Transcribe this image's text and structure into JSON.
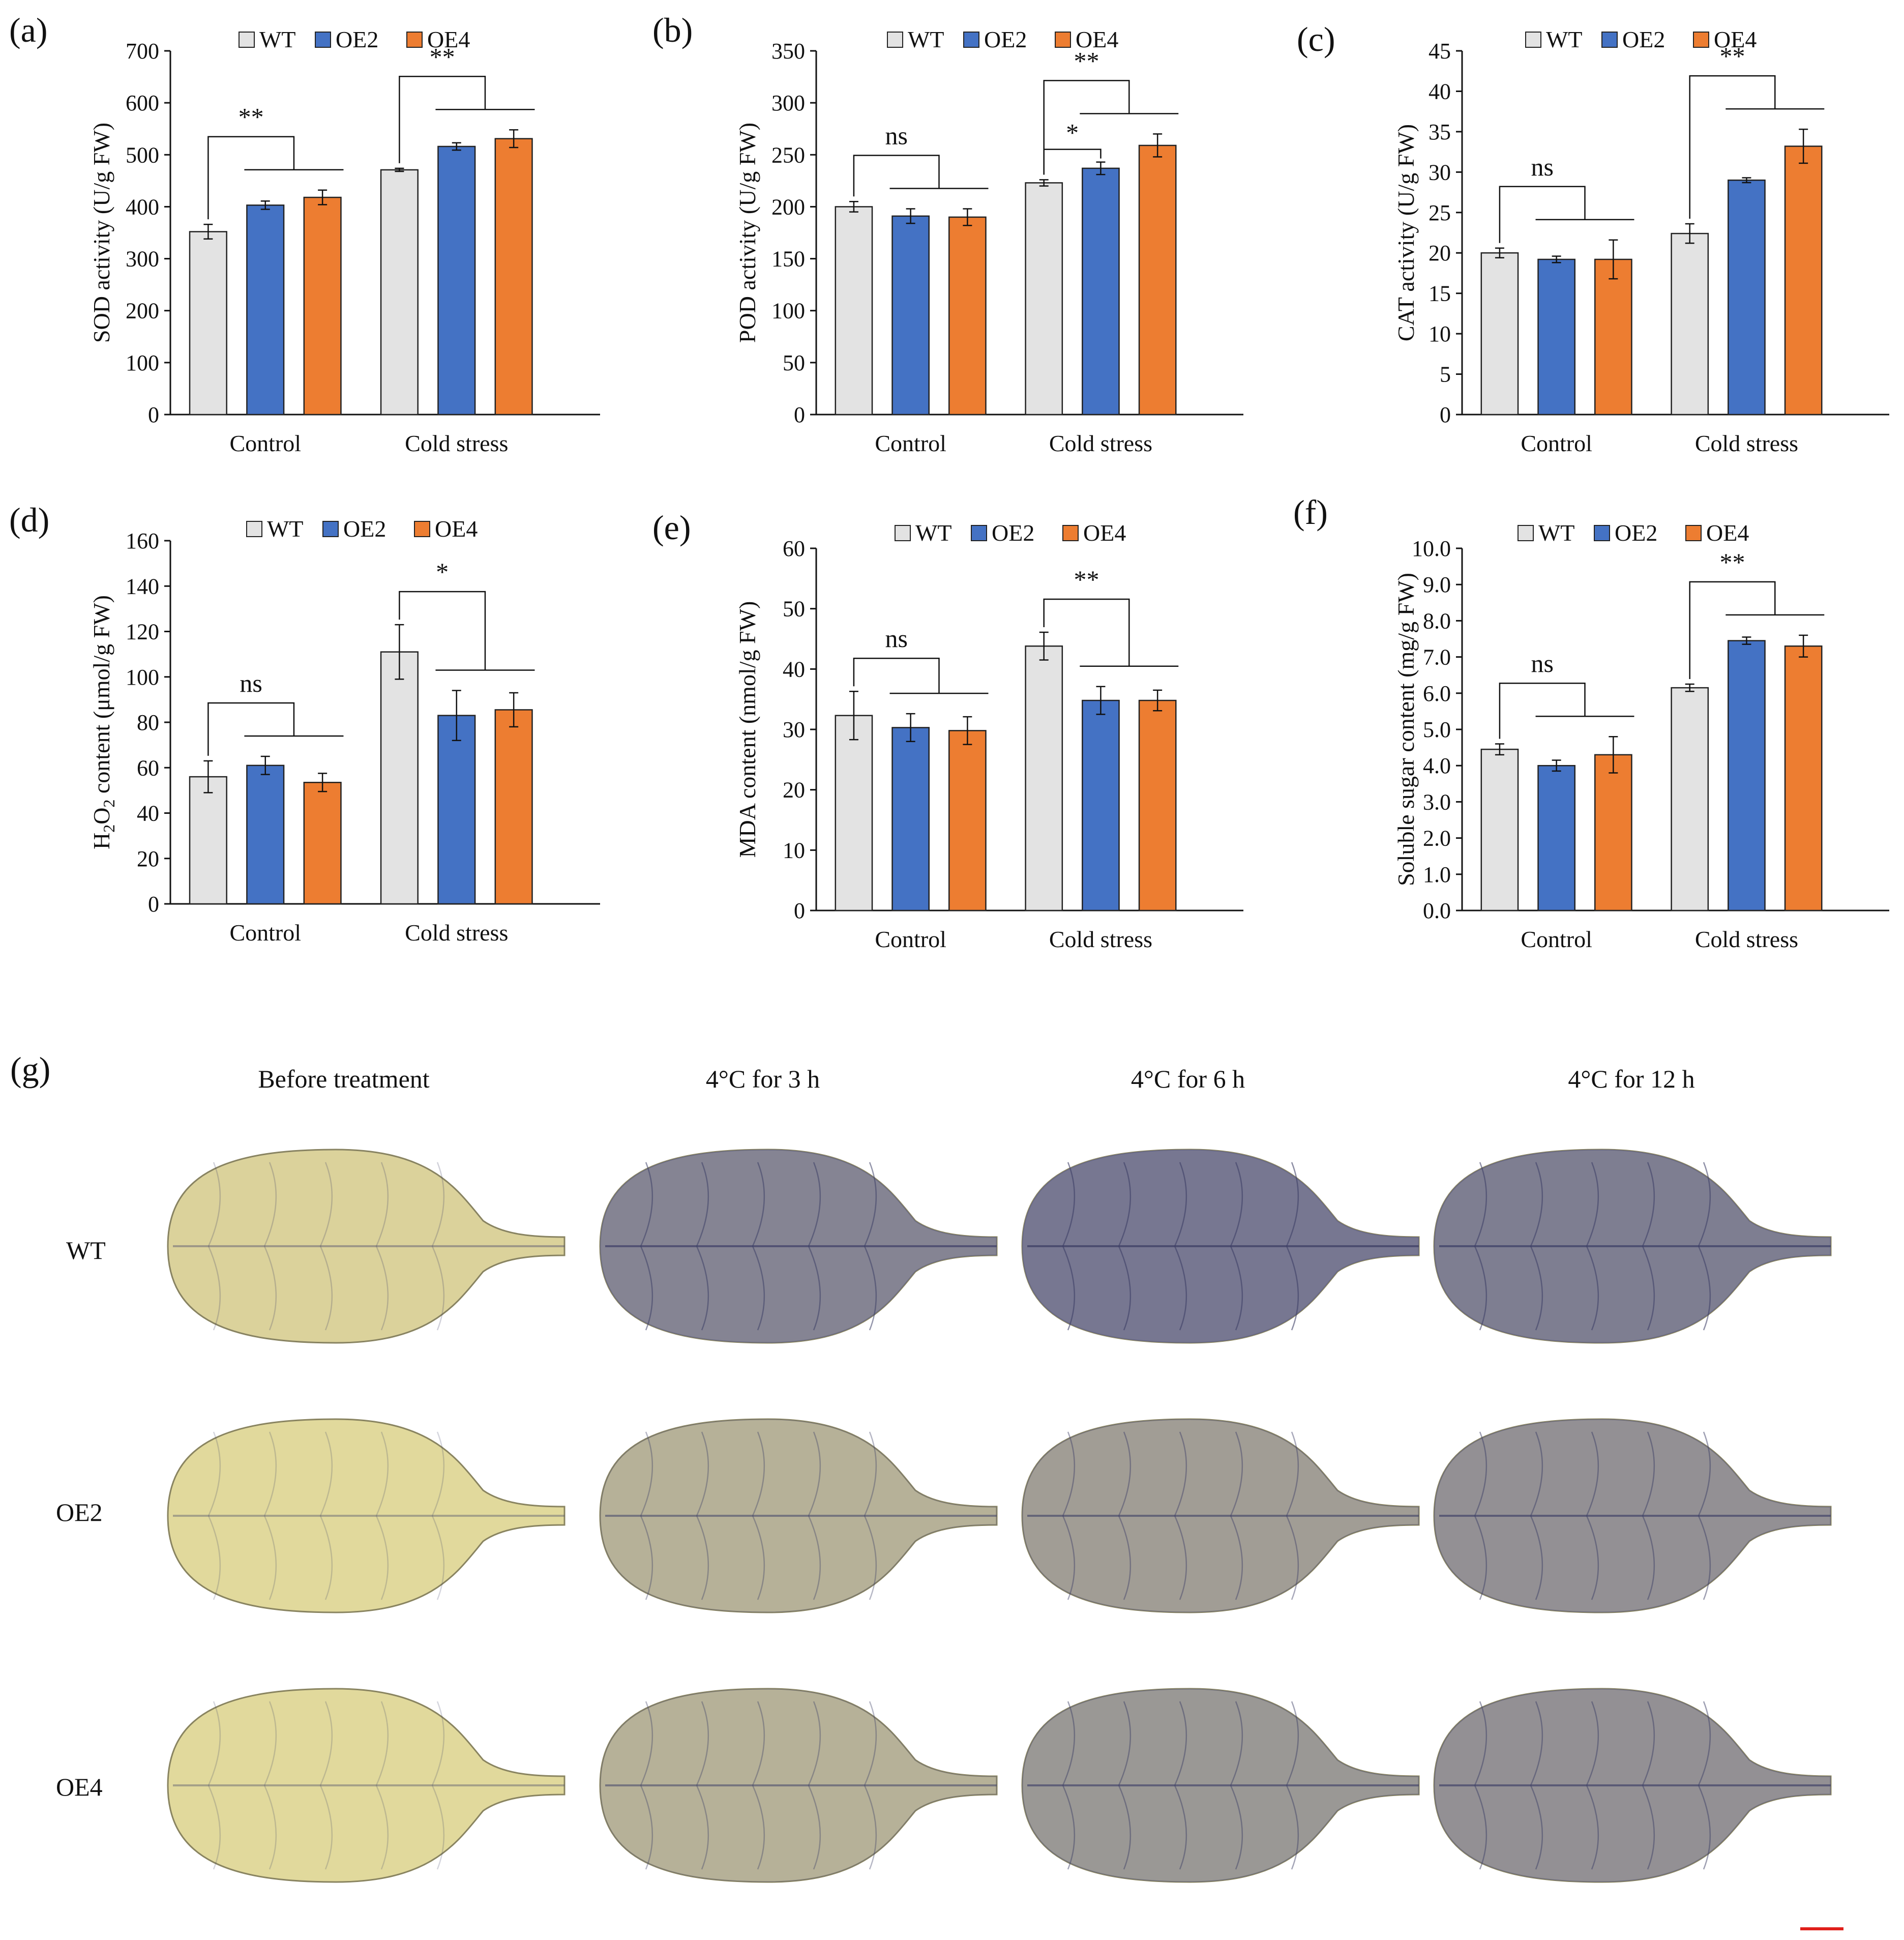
{
  "legend": {
    "wt": "WT",
    "oe2": "OE2",
    "oe4": "OE4"
  },
  "colors": {
    "wt": "#e3e3e3",
    "oe2": "#4472c4",
    "oe4": "#ed7d31",
    "scale_bar": "#e0201b",
    "leaf_base": "#e6dd9d",
    "stain": "#5b5e8e"
  },
  "chart_data": [
    {
      "panel": "(a)",
      "type": "bar",
      "ylabel": "SOD activity (U/g FW)",
      "categories": [
        "Control",
        "Cold stress"
      ],
      "ylim": [
        0,
        700
      ],
      "ticks": [
        "0",
        "100",
        "200",
        "300",
        "400",
        "500",
        "600",
        "700"
      ],
      "series": [
        {
          "name": "WT",
          "values": [
            352,
            471
          ],
          "errors": [
            14,
            3
          ]
        },
        {
          "name": "OE2",
          "values": [
            403,
            516
          ],
          "errors": [
            8,
            7
          ]
        },
        {
          "name": "OE4",
          "values": [
            418,
            531
          ],
          "errors": [
            14,
            17
          ]
        }
      ],
      "significance": [
        "**",
        "**"
      ]
    },
    {
      "panel": "(b)",
      "type": "bar",
      "ylabel": "POD activity (U/g FW)",
      "categories": [
        "Control",
        "Cold stress"
      ],
      "ylim": [
        0,
        350
      ],
      "ticks": [
        "0",
        "50",
        "100",
        "150",
        "200",
        "250",
        "300",
        "350"
      ],
      "series": [
        {
          "name": "WT",
          "values": [
            200,
            223
          ],
          "errors": [
            5,
            3
          ]
        },
        {
          "name": "OE2",
          "values": [
            191,
            237
          ],
          "errors": [
            7,
            6
          ]
        },
        {
          "name": "OE4",
          "values": [
            190,
            259
          ],
          "errors": [
            8,
            11
          ]
        }
      ],
      "significance": [
        "ns",
        "**"
      ],
      "extra_significance": "*"
    },
    {
      "panel": "(c)",
      "type": "bar",
      "ylabel": "CAT activity (U/g FW)",
      "categories": [
        "Control",
        "Cold stress"
      ],
      "ylim": [
        0,
        45
      ],
      "ticks": [
        "0",
        "5",
        "10",
        "15",
        "20",
        "25",
        "30",
        "35",
        "40",
        "45"
      ],
      "series": [
        {
          "name": "WT",
          "values": [
            20.0,
            22.4
          ],
          "errors": [
            0.6,
            1.2
          ]
        },
        {
          "name": "OE2",
          "values": [
            19.2,
            29.0
          ],
          "errors": [
            0.4,
            0.3
          ]
        },
        {
          "name": "OE4",
          "values": [
            19.2,
            33.2
          ],
          "errors": [
            2.4,
            2.1
          ]
        }
      ],
      "significance": [
        "ns",
        "**"
      ]
    },
    {
      "panel": "(d)",
      "type": "bar",
      "ylabel_main": "H",
      "ylabel_sub1": "2",
      "ylabel_mid": "O",
      "ylabel_sub2": "2",
      "ylabel_rest": " content (μmol/g FW)",
      "categories": [
        "Control",
        "Cold stress"
      ],
      "ylim": [
        0,
        160
      ],
      "ticks": [
        "0",
        "20",
        "40",
        "60",
        "80",
        "100",
        "120",
        "140",
        "160"
      ],
      "series": [
        {
          "name": "WT",
          "values": [
            56,
            111
          ],
          "errors": [
            7,
            12
          ]
        },
        {
          "name": "OE2",
          "values": [
            61,
            83
          ],
          "errors": [
            4,
            11
          ]
        },
        {
          "name": "OE4",
          "values": [
            53.5,
            85.5
          ],
          "errors": [
            4,
            7.5
          ]
        }
      ],
      "significance": [
        "ns",
        "*"
      ]
    },
    {
      "panel": "(e)",
      "type": "bar",
      "ylabel": "MDA content (nmol/g FW)",
      "categories": [
        "Control",
        "Cold stress"
      ],
      "ylim": [
        0,
        60
      ],
      "ticks": [
        "0",
        "10",
        "20",
        "30",
        "40",
        "50",
        "60"
      ],
      "series": [
        {
          "name": "WT",
          "values": [
            32.3,
            43.8
          ],
          "errors": [
            4,
            2.3
          ]
        },
        {
          "name": "OE2",
          "values": [
            30.3,
            34.8
          ],
          "errors": [
            2.3,
            2.3
          ]
        },
        {
          "name": "OE4",
          "values": [
            29.8,
            34.8
          ],
          "errors": [
            2.3,
            1.7
          ]
        }
      ],
      "significance": [
        "ns",
        "**"
      ]
    },
    {
      "panel": "(f)",
      "type": "bar",
      "ylabel": "Soluble sugar content (mg/g FW)",
      "categories": [
        "Control",
        "Cold stress"
      ],
      "ylim": [
        0,
        10
      ],
      "ticks": [
        "0.0",
        "1.0",
        "2.0",
        "3.0",
        "4.0",
        "5.0",
        "6.0",
        "7.0",
        "8.0",
        "9.0",
        "10.0"
      ],
      "series": [
        {
          "name": "WT",
          "values": [
            4.45,
            6.15
          ],
          "errors": [
            0.15,
            0.1
          ]
        },
        {
          "name": "OE2",
          "values": [
            4.0,
            7.45
          ],
          "errors": [
            0.15,
            0.1
          ]
        },
        {
          "name": "OE4",
          "values": [
            4.3,
            7.3
          ],
          "errors": [
            0.5,
            0.3
          ]
        }
      ],
      "significance": [
        "ns",
        "**"
      ]
    }
  ],
  "photo_panel": {
    "label": "(g)",
    "columns": [
      "Before treatment",
      "4°C for 3 h",
      "4°C for 6 h",
      "4°C for 12 h"
    ],
    "rows": [
      "WT",
      "OE2",
      "OE4"
    ],
    "stain_levels": [
      [
        0.08,
        0.7,
        0.8,
        0.75
      ],
      [
        0.03,
        0.35,
        0.5,
        0.6
      ],
      [
        0.03,
        0.35,
        0.55,
        0.6
      ]
    ]
  }
}
